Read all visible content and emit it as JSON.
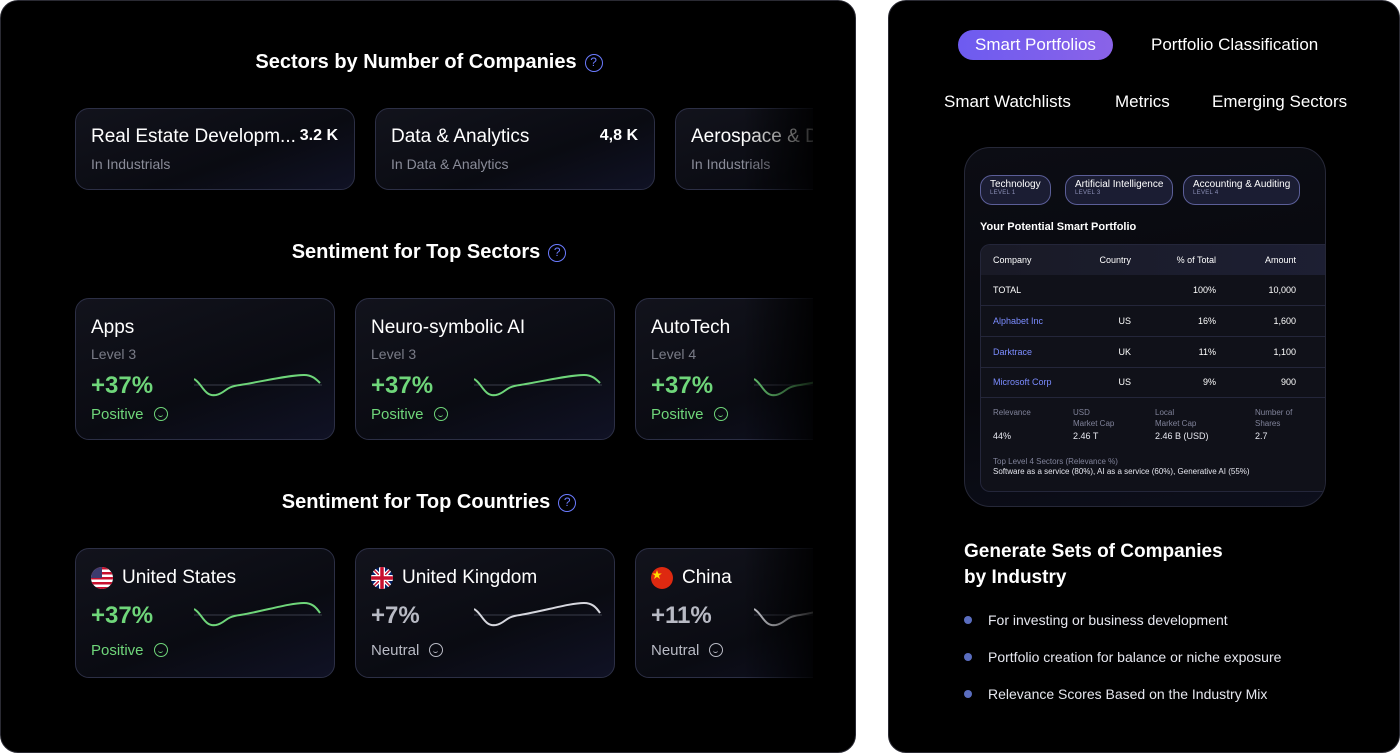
{
  "left": {
    "sectors": {
      "title": "Sectors by Number of Companies",
      "help": "?",
      "cards": [
        {
          "name": "Real Estate Developm...",
          "count": "3.2 K",
          "sub": "In Industrials"
        },
        {
          "name": "Data & Analytics",
          "count": "4,8 K",
          "sub": "In Data & Analytics"
        },
        {
          "name": "Aerospace & D",
          "count": "",
          "sub": "In Industrials"
        }
      ]
    },
    "sentiment_sectors": {
      "title": "Sentiment for Top Sectors",
      "help": "?",
      "cards": [
        {
          "name": "Apps",
          "level": "Level 3",
          "pct": "+37%",
          "mood": "Positive"
        },
        {
          "name": "Neuro-symbolic AI",
          "level": "Level 3",
          "pct": "+37%",
          "mood": "Positive"
        },
        {
          "name": "AutoTech",
          "level": "Level 4",
          "pct": "+37%",
          "mood": "Positive"
        }
      ]
    },
    "sentiment_countries": {
      "title": "Sentiment for Top Countries",
      "help": "?",
      "cards": [
        {
          "name": "United States",
          "pct": "+37%",
          "mood": "Positive"
        },
        {
          "name": "United Kingdom",
          "pct": "+7%",
          "mood": "Neutral"
        },
        {
          "name": "China",
          "pct": "+11%",
          "mood": "Neutral"
        }
      ]
    }
  },
  "right": {
    "tabs": [
      "Smart Portfolios",
      "Portfolio Classification",
      "Smart Watchlists",
      "Metrics",
      "Emerging Sectors"
    ],
    "chips": [
      {
        "label": "Technology",
        "level": "LEVEL 1"
      },
      {
        "label": "Artificial Intelligence",
        "level": "LEVEL 3"
      },
      {
        "label": "Accounting & Auditing",
        "level": "LEVEL 4"
      }
    ],
    "portfolio_title": "Your Potential Smart Portfolio",
    "table": {
      "headers": [
        "Company",
        "Country",
        "% of Total",
        "Amount"
      ],
      "total": {
        "label": "TOTAL",
        "pct": "100%",
        "amount": "10,000"
      },
      "rows": [
        {
          "company": "Alphabet Inc",
          "country": "US",
          "pct": "16%",
          "amount": "1,600"
        },
        {
          "company": "Darktrace",
          "country": "UK",
          "pct": "11%",
          "amount": "1,100"
        },
        {
          "company": "Microsoft Corp",
          "country": "US",
          "pct": "9%",
          "amount": "900"
        }
      ],
      "details": {
        "relevance_label": "Relevance",
        "relevance_value": "44%",
        "usd_label_1": "USD",
        "usd_label_2": "Market Cap",
        "usd_value": "2.46 T",
        "local_label_1": "Local",
        "local_label_2": "Market Cap",
        "local_value": "2.46 B (USD)",
        "shares_label_1": "Number of",
        "shares_label_2": "Shares",
        "shares_value": "2.7",
        "sectors_label": "Top Level 4 Sectors (Relevance %)",
        "sectors_value": "Software as a service (80%), AI as a service (60%), Generative AI (55%)"
      }
    },
    "headline_1": "Generate Sets of Companies",
    "headline_2": "by Industry",
    "bullets": [
      "For investing or business development",
      "Portfolio creation for balance or niche exposure",
      "Relevance Scores Based on the Industry Mix"
    ]
  },
  "colors": {
    "accent": "#7b5cf0",
    "positive": "#6fd67a",
    "neutral": "#b8bac4",
    "link": "#7b8cff"
  },
  "icons": [
    "help-circle-icon",
    "smile-icon",
    "us-flag-icon",
    "uk-flag-icon",
    "china-flag-icon",
    "bullet-dot-icon"
  ]
}
